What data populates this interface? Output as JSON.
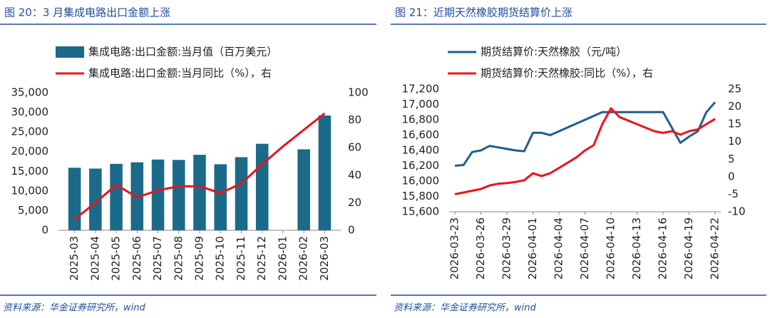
{
  "chart_data": [
    {
      "type": "bar",
      "title": "图 20：3 月集成电路出口金额上涨",
      "source": "资料来源：华金证券研究所，wind",
      "categories": [
        "2025-03",
        "2025-04",
        "2025-05",
        "2025-06",
        "2025-07",
        "2025-08",
        "2025-09",
        "2025-10",
        "2025-11",
        "2025-12",
        "2026-01",
        "2026-02",
        "2026-03"
      ],
      "series": [
        {
          "name": "集成电路:出口金额:当月值（百万美元）",
          "color": "#1b6a8a",
          "type": "bar",
          "values": [
            15900,
            15700,
            16900,
            17300,
            18000,
            17900,
            19200,
            16800,
            18600,
            22000,
            null,
            20600,
            29200
          ]
        },
        {
          "name": "集成电路:出口金额:当月同比（%），右",
          "color": "#e8141b",
          "type": "line",
          "axis": "y2",
          "values": [
            8,
            20,
            33,
            24,
            29,
            32,
            32,
            27,
            34,
            48,
            61,
            73,
            85
          ]
        }
      ],
      "ylim": [
        0,
        35000
      ],
      "yticks": [
        0,
        {
          "value": 5000,
          "label": "5,000"
        },
        {
          "value": 10000,
          "label": "10,000"
        },
        {
          "value": 15000,
          "label": "15,000"
        },
        {
          "value": 20000,
          "label": "20,000"
        },
        {
          "value": 25000,
          "label": "25,000"
        },
        {
          "value": 30000,
          "label": "30,000"
        },
        {
          "value": 35000,
          "label": "35,000"
        }
      ],
      "y2lim": [
        0,
        100
      ],
      "y2ticks": [
        0,
        20,
        40,
        60,
        80,
        100
      ]
    },
    {
      "type": "line",
      "title": "图 21：近期天然橡胶期货结算价上涨",
      "source": "资料来源：华金证券研究所，wind",
      "categories": [
        "2026-03-23",
        null,
        null,
        "2026-03-26",
        null,
        null,
        "2026-03-29",
        null,
        null,
        "2026-04-01",
        null,
        null,
        "2026-04-04",
        null,
        null,
        "2026-04-07",
        null,
        null,
        "2026-04-10",
        null,
        null,
        "2026-04-13",
        null,
        null,
        "2026-04-16",
        null,
        null,
        "2026-04-19",
        null,
        null,
        "2026-04-22"
      ],
      "series": [
        {
          "name": "期货结算价:天然橡胶（元/吨）",
          "color": "#1f5f8b",
          "values": [
            16200,
            16210,
            16380,
            16400,
            16460,
            16440,
            16420,
            16400,
            16390,
            16630,
            16630,
            16600,
            16650,
            16700,
            16750,
            16800,
            16850,
            16900,
            16900,
            16900,
            16900,
            16900,
            16900,
            16900,
            16900,
            16700,
            16500,
            16580,
            16650,
            16900,
            17030
          ]
        },
        {
          "name": "期货结算价:天然橡胶:同比（%），右",
          "color": "#e8141b",
          "axis": "y2",
          "values": [
            -5,
            -4.5,
            -4,
            -3.5,
            -2.5,
            -2,
            -1.8,
            -1.5,
            -1,
            1,
            0.2,
            1,
            2.5,
            4,
            5.5,
            7.5,
            9,
            15,
            19.5,
            17,
            16,
            15,
            14,
            13,
            12.5,
            13,
            12,
            13,
            13.5,
            15,
            16.5
          ]
        }
      ],
      "ylim": [
        15600,
        17200
      ],
      "yticks": [
        {
          "value": 15600,
          "label": "15,600"
        },
        {
          "value": 15800,
          "label": "15,800"
        },
        {
          "value": 16000,
          "label": "16,000"
        },
        {
          "value": 16200,
          "label": "16,200"
        },
        {
          "value": 16400,
          "label": "16,400"
        },
        {
          "value": 16600,
          "label": "16,600"
        },
        {
          "value": 16800,
          "label": "16,800"
        },
        {
          "value": 17000,
          "label": "17,000"
        },
        {
          "value": 17200,
          "label": "17,200"
        }
      ],
      "y2lim": [
        -10,
        25
      ],
      "y2ticks": [
        -10,
        -5,
        0,
        5,
        10,
        15,
        20,
        25
      ]
    }
  ]
}
